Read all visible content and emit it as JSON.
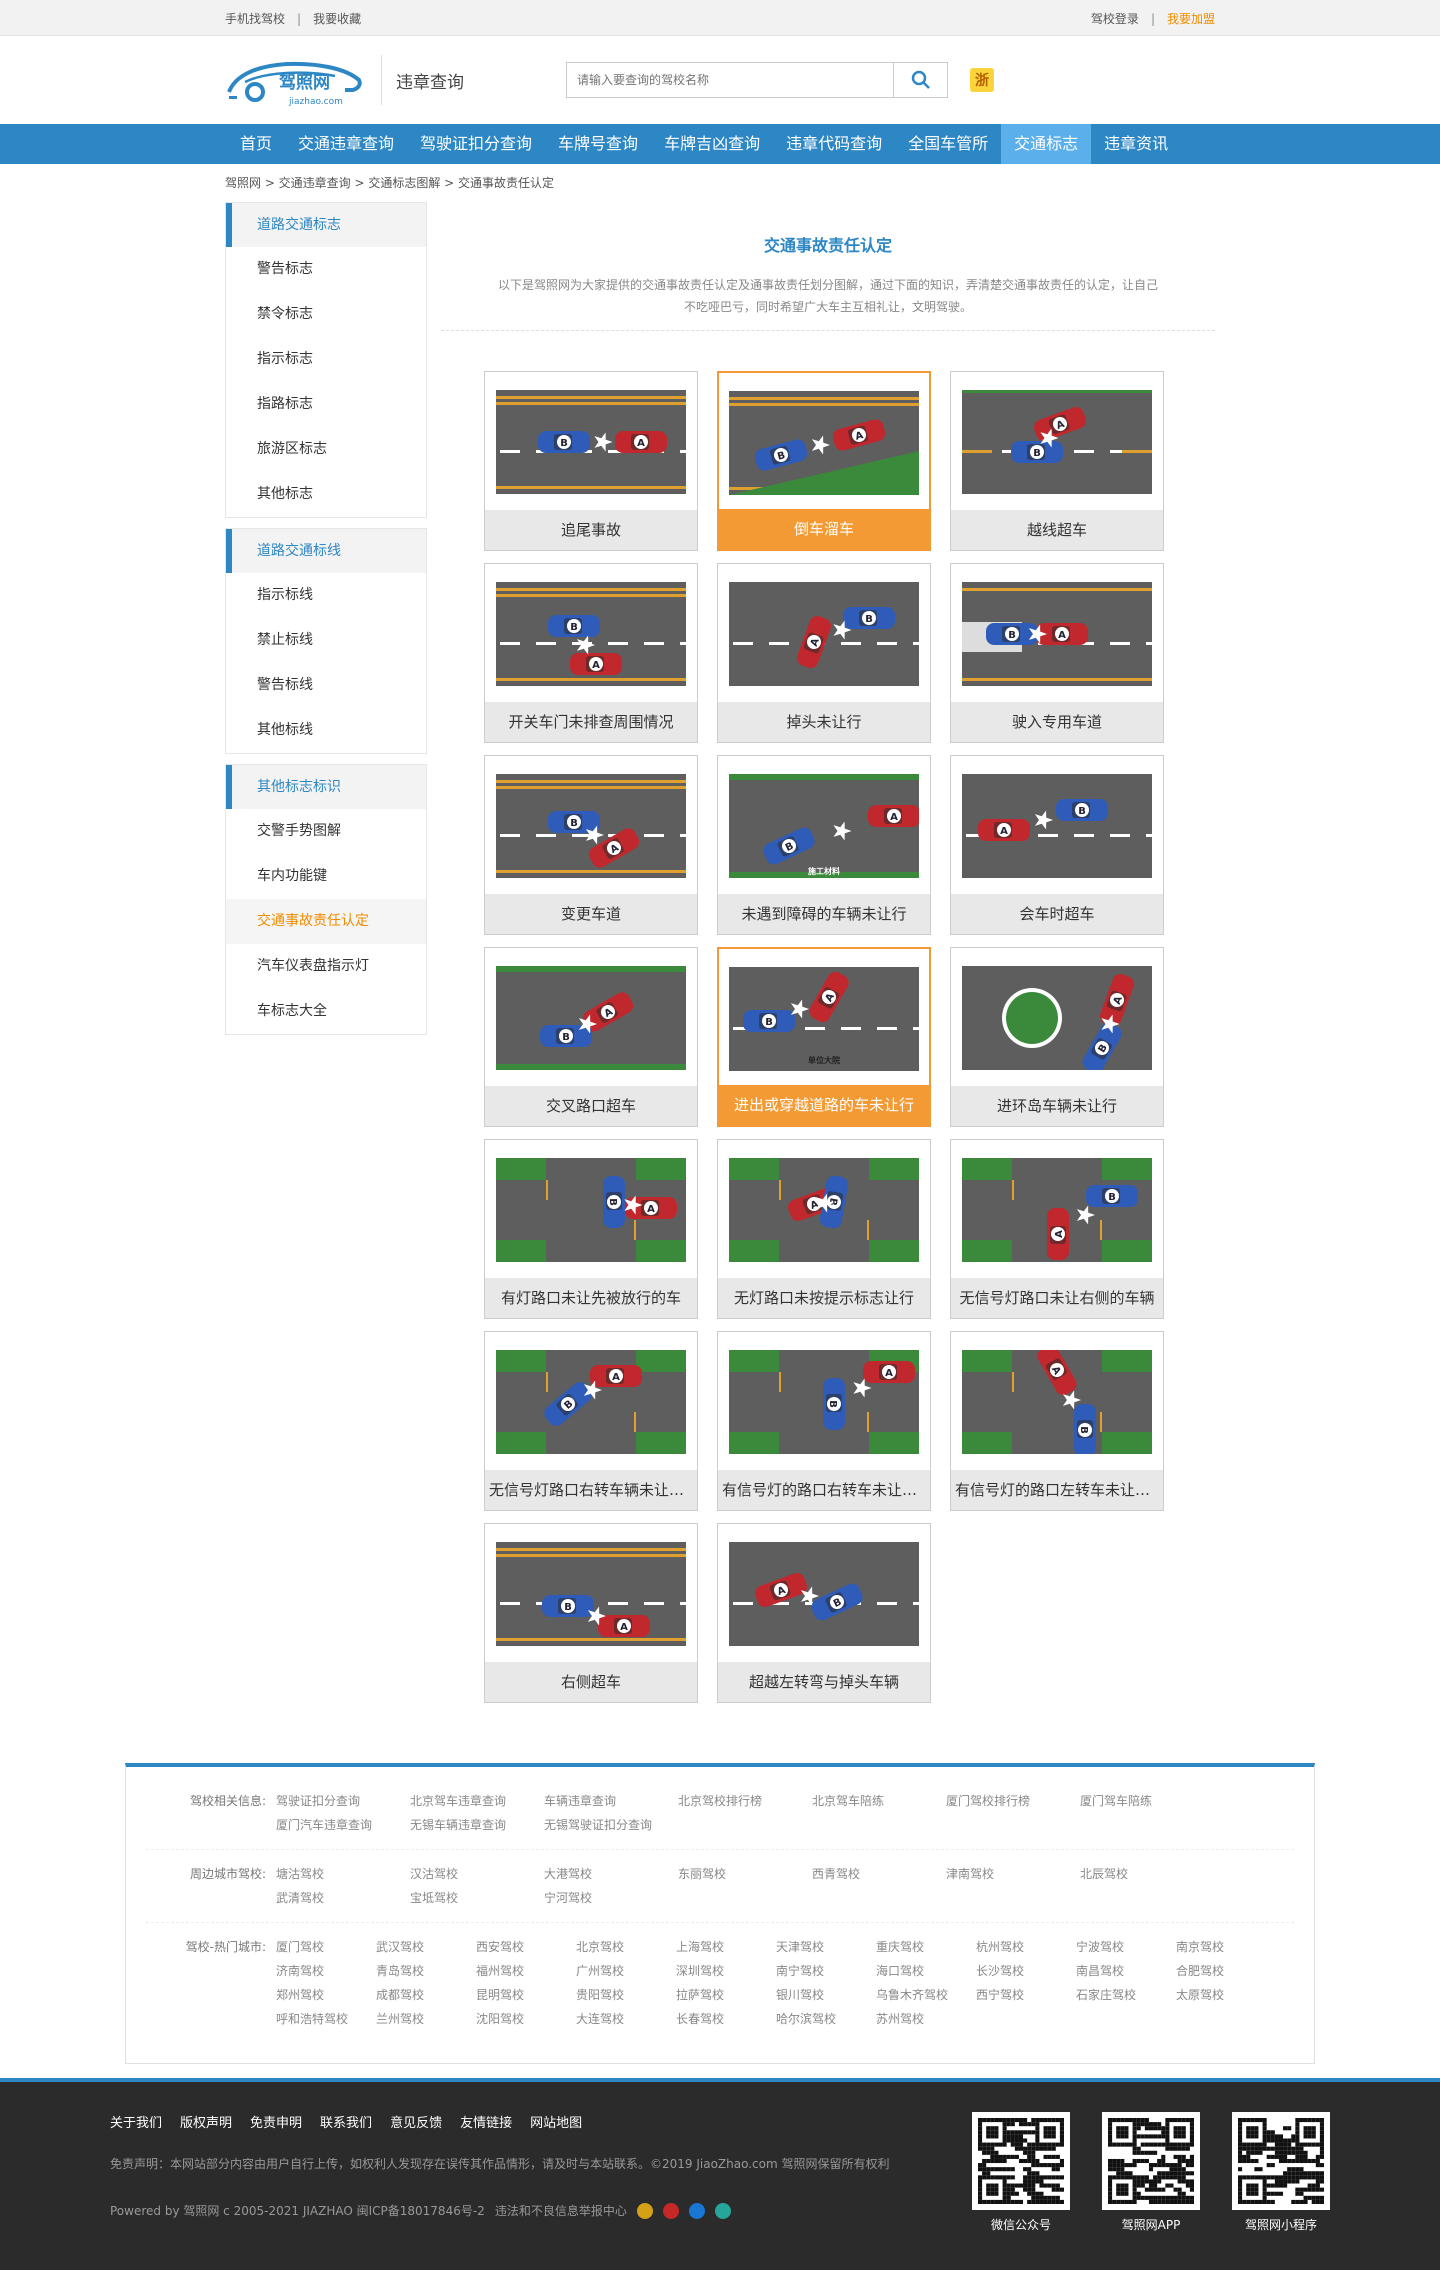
{
  "topbar": {
    "left": [
      "手机找驾校",
      "我要收藏"
    ],
    "right": [
      "驾校登录",
      "我要加盟"
    ]
  },
  "header": {
    "logo_cn": "驾照网",
    "logo_en": "jiazhao.com",
    "subtitle": "违章查询",
    "search_placeholder": "请输入要查询的驾校名称",
    "region_badge": "浙"
  },
  "nav": [
    "首页",
    "交通违章查询",
    "驾驶证扣分查询",
    "车牌号查询",
    "车牌吉凶查询",
    "违章代码查询",
    "全国车管所",
    "交通标志",
    "违章资讯"
  ],
  "nav_current": 7,
  "breadcrumb": "驾照网 >  交通违章查询 >  交通标志图解 >  交通事故责任认定",
  "sidebar": [
    {
      "title": "道路交通标志",
      "items": [
        "警告标志",
        "禁令标志",
        "指示标志",
        "指路标志",
        "旅游区标志",
        "其他标志"
      ]
    },
    {
      "title": "道路交通标线",
      "items": [
        "指示标线",
        "禁止标线",
        "警告标线",
        "其他标线"
      ]
    },
    {
      "title": "其他标志标识",
      "items": [
        "交警手势图解",
        "车内功能键",
        "交通事故责任认定",
        "汽车仪表盘指示灯",
        "车标志大全"
      ]
    }
  ],
  "sidebar_current": "交通事故责任认定",
  "content": {
    "title": "交通事故责任认定",
    "desc": "以下是驾照网为大家提供的交通事故责任认定及通事故责任划分图解，通过下面的知识，弄清楚交通事故责任的认定，让自己不吃哑巴亏，同时希望广大车主互相礼让，文明驾驶。"
  },
  "cards": [
    {
      "label": "追尾事故",
      "hl": false
    },
    {
      "label": "倒车溜车",
      "hl": true
    },
    {
      "label": "越线超车",
      "hl": false
    },
    {
      "label": "开关车门未排查周围情况",
      "hl": false
    },
    {
      "label": "掉头未让行",
      "hl": false
    },
    {
      "label": "驶入专用车道",
      "hl": false
    },
    {
      "label": "变更车道",
      "hl": false
    },
    {
      "label": "未遇到障碍的车辆未让行",
      "hl": false
    },
    {
      "label": "会车时超车",
      "hl": false
    },
    {
      "label": "交叉路口超车",
      "hl": false
    },
    {
      "label": "进出或穿越道路的车未让行",
      "hl": true
    },
    {
      "label": "进环岛车辆未让行",
      "hl": false
    },
    {
      "label": "有灯路口未让先被放行的车",
      "hl": false
    },
    {
      "label": "无灯路口未按提示标志让行",
      "hl": false
    },
    {
      "label": "无信号灯路口未让右侧的车辆",
      "hl": false
    },
    {
      "label": "无信号灯路口右转车辆未让左转车辆",
      "hl": false
    },
    {
      "label": "有信号灯的路口右转车未让左转车",
      "hl": false
    },
    {
      "label": "有信号灯的路口左转车未让直行车",
      "hl": false
    },
    {
      "label": "右侧超车",
      "hl": false
    },
    {
      "label": "超越左转弯与掉头车辆",
      "hl": false
    }
  ],
  "car_letters": [
    "A",
    "B"
  ],
  "scene_texts": [
    "施工材料",
    "单位大院"
  ],
  "links": {
    "related": {
      "title": "驾校相关信息:",
      "items": [
        "驾驶证扣分查询",
        "北京驾车违章查询",
        "车辆违章查询",
        "北京驾校排行榜",
        "北京驾车陪练",
        "厦门驾校排行榜",
        "厦门驾车陪练",
        "厦门汽车违章查询",
        "无锡车辆违章查询",
        "无锡驾驶证扣分查询"
      ]
    },
    "nearby": {
      "title": "周边城市驾校:",
      "items": [
        "塘沽驾校",
        "汉沽驾校",
        "大港驾校",
        "东丽驾校",
        "西青驾校",
        "津南驾校",
        "北辰驾校",
        "武清驾校",
        "宝坻驾校",
        "宁河驾校"
      ]
    },
    "hot": {
      "title": "驾校-热门城市:",
      "items": [
        "厦门驾校",
        "武汉驾校",
        "西安驾校",
        "北京驾校",
        "上海驾校",
        "天津驾校",
        "重庆驾校",
        "杭州驾校",
        "宁波驾校",
        "南京驾校",
        "济南驾校",
        "青岛驾校",
        "福州驾校",
        "广州驾校",
        "深圳驾校",
        "南宁驾校",
        "海口驾校",
        "长沙驾校",
        "南昌驾校",
        "合肥驾校",
        "郑州驾校",
        "成都驾校",
        "昆明驾校",
        "贵阳驾校",
        "拉萨驾校",
        "银川驾校",
        "乌鲁木齐驾校",
        "西宁驾校",
        "石家庄驾校",
        "太原驾校",
        "呼和浩特驾校",
        "兰州驾校",
        "沈阳驾校",
        "大连驾校",
        "长春驾校",
        "哈尔滨驾校",
        "苏州驾校"
      ]
    }
  },
  "footer": {
    "nav": [
      "关于我们",
      "版权声明",
      "免责申明",
      "联系我们",
      "意见反馈",
      "友情链接",
      "网站地图"
    ],
    "disclaimer": "免责声明：本网站部分内容由用户自行上传，如权利人发现存在误传其作品情形，请及时与本站联系。©2019 JiaoZhao.com 驾照网保留所有权利",
    "powered": "Powered by 驾照网 c 2005-2021 JIAZHAO 闽ICP备18017846号-2",
    "report": "违法和不良信息举报中心",
    "qrcodes": [
      "微信公众号",
      "驾照网APP",
      "驾照网小程序"
    ]
  }
}
